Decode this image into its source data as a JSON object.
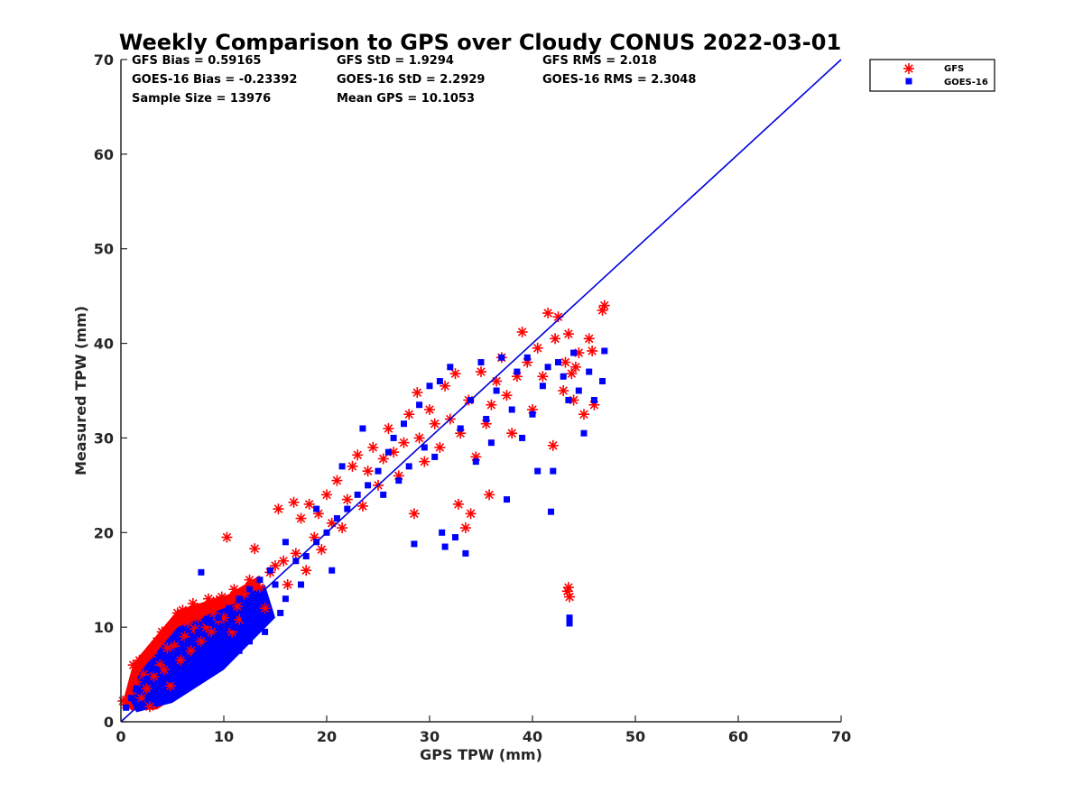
{
  "chart_data": {
    "type": "scatter",
    "title": "Weekly Comparison to GPS over Cloudy CONUS 2022-03-01",
    "xlabel": "GPS TPW (mm)",
    "ylabel": "Measured TPW (mm)",
    "xlim": [
      0,
      70
    ],
    "ylim": [
      0,
      70
    ],
    "xticks": [
      "0",
      "10",
      "20",
      "30",
      "40",
      "50",
      "60",
      "70"
    ],
    "yticks": [
      "0",
      "10",
      "20",
      "30",
      "40",
      "50",
      "60",
      "70"
    ],
    "grid": false,
    "legend_position": "outside-top-right",
    "reference_line": {
      "x": [
        0,
        70
      ],
      "y": [
        0,
        70
      ],
      "color": "#0000dd"
    },
    "stats": [
      {
        "id": "gfs-bias",
        "text": "GFS Bias = 0.59165"
      },
      {
        "id": "gfs-std",
        "text": "GFS StD = 1.9294"
      },
      {
        "id": "gfs-rms",
        "text": "GFS RMS = 2.018"
      },
      {
        "id": "goes-bias",
        "text": "GOES-16 Bias = -0.23392"
      },
      {
        "id": "goes-std",
        "text": "GOES-16 StD = 2.2929"
      },
      {
        "id": "goes-rms",
        "text": "GOES-16 RMS = 2.3048"
      },
      {
        "id": "sample-size",
        "text": "Sample Size = 13976"
      },
      {
        "id": "mean-gps",
        "text": "Mean GPS = 10.1053"
      }
    ],
    "series": [
      {
        "name": "GFS",
        "marker": "asterisk",
        "color": "#ff0000",
        "points": [
          [
            0.2,
            2.2
          ],
          [
            0.5,
            1.8
          ],
          [
            1.0,
            3.0
          ],
          [
            1.2,
            6.0
          ],
          [
            1.5,
            4.2
          ],
          [
            1.8,
            6.5
          ],
          [
            2.0,
            2.5
          ],
          [
            2.2,
            5.0
          ],
          [
            2.5,
            3.5
          ],
          [
            2.8,
            1.6
          ],
          [
            3.0,
            7.2
          ],
          [
            3.2,
            4.8
          ],
          [
            3.5,
            8.5
          ],
          [
            3.8,
            6.0
          ],
          [
            4.0,
            9.5
          ],
          [
            4.2,
            5.5
          ],
          [
            4.5,
            7.8
          ],
          [
            4.8,
            3.8
          ],
          [
            5.0,
            10.2
          ],
          [
            5.2,
            8.0
          ],
          [
            5.5,
            11.5
          ],
          [
            5.8,
            6.5
          ],
          [
            6.0,
            11.8
          ],
          [
            6.2,
            9.0
          ],
          [
            6.5,
            10.5
          ],
          [
            6.8,
            7.5
          ],
          [
            7.0,
            12.5
          ],
          [
            7.2,
            9.8
          ],
          [
            7.5,
            11.0
          ],
          [
            7.8,
            8.5
          ],
          [
            8.0,
            12.0
          ],
          [
            8.3,
            10.0
          ],
          [
            8.5,
            13.0
          ],
          [
            8.8,
            9.5
          ],
          [
            9.0,
            11.5
          ],
          [
            9.3,
            12.8
          ],
          [
            9.5,
            10.8
          ],
          [
            9.8,
            13.2
          ],
          [
            10.0,
            11.0
          ],
          [
            10.3,
            19.5
          ],
          [
            10.5,
            12.5
          ],
          [
            10.8,
            9.5
          ],
          [
            11.0,
            14.0
          ],
          [
            11.3,
            12.2
          ],
          [
            11.5,
            10.8
          ],
          [
            12.0,
            13.5
          ],
          [
            12.5,
            15.0
          ],
          [
            13.0,
            18.3
          ],
          [
            13.5,
            14.2
          ],
          [
            14.0,
            12.0
          ],
          [
            14.5,
            15.8
          ],
          [
            15.0,
            16.5
          ],
          [
            15.3,
            22.5
          ],
          [
            15.8,
            17.0
          ],
          [
            16.2,
            14.5
          ],
          [
            16.8,
            23.2
          ],
          [
            17.0,
            17.8
          ],
          [
            17.5,
            21.5
          ],
          [
            18.0,
            16.0
          ],
          [
            18.3,
            23.0
          ],
          [
            18.8,
            19.5
          ],
          [
            19.2,
            22.0
          ],
          [
            19.5,
            18.2
          ],
          [
            20.0,
            24.0
          ],
          [
            20.5,
            21.0
          ],
          [
            21.0,
            25.5
          ],
          [
            21.5,
            20.5
          ],
          [
            22.0,
            23.5
          ],
          [
            22.5,
            27.0
          ],
          [
            23.0,
            28.2
          ],
          [
            23.5,
            22.8
          ],
          [
            24.0,
            26.5
          ],
          [
            24.5,
            29.0
          ],
          [
            25.0,
            25.0
          ],
          [
            25.5,
            27.8
          ],
          [
            26.0,
            31.0
          ],
          [
            26.5,
            28.5
          ],
          [
            27.0,
            26.0
          ],
          [
            27.5,
            29.5
          ],
          [
            28.0,
            32.5
          ],
          [
            28.5,
            22.0
          ],
          [
            28.8,
            34.8
          ],
          [
            29.0,
            30.0
          ],
          [
            29.5,
            27.5
          ],
          [
            30.0,
            33.0
          ],
          [
            30.5,
            31.5
          ],
          [
            31.0,
            29.0
          ],
          [
            31.5,
            35.5
          ],
          [
            32.0,
            32.0
          ],
          [
            32.5,
            36.8
          ],
          [
            32.8,
            23.0
          ],
          [
            33.0,
            30.5
          ],
          [
            33.5,
            20.5
          ],
          [
            33.8,
            34.0
          ],
          [
            34.0,
            22.0
          ],
          [
            34.5,
            28.0
          ],
          [
            35.0,
            37.0
          ],
          [
            35.5,
            31.5
          ],
          [
            35.8,
            24.0
          ],
          [
            36.0,
            33.5
          ],
          [
            36.5,
            36.0
          ],
          [
            37.0,
            38.5
          ],
          [
            37.5,
            34.5
          ],
          [
            38.0,
            30.5
          ],
          [
            38.5,
            36.5
          ],
          [
            39.0,
            41.2
          ],
          [
            39.5,
            38.0
          ],
          [
            40.0,
            33.0
          ],
          [
            40.5,
            39.5
          ],
          [
            41.0,
            36.5
          ],
          [
            41.5,
            43.2
          ],
          [
            42.0,
            29.2
          ],
          [
            42.2,
            40.5
          ],
          [
            42.5,
            42.8
          ],
          [
            43.0,
            35.0
          ],
          [
            43.2,
            38.0
          ],
          [
            43.5,
            41.0
          ],
          [
            43.8,
            36.8
          ],
          [
            44.0,
            34.0
          ],
          [
            44.2,
            37.5
          ],
          [
            44.5,
            39.0
          ],
          [
            45.0,
            32.5
          ],
          [
            45.5,
            40.5
          ],
          [
            45.8,
            39.2
          ],
          [
            46.0,
            33.5
          ],
          [
            46.8,
            43.5
          ],
          [
            47.0,
            44.0
          ],
          [
            43.5,
            14.2
          ],
          [
            43.6,
            13.2
          ],
          [
            43.4,
            13.8
          ]
        ]
      },
      {
        "name": "GOES-16",
        "marker": "square",
        "color": "#0000ff",
        "points": [
          [
            0.5,
            1.5
          ],
          [
            1.0,
            2.5
          ],
          [
            1.5,
            3.5
          ],
          [
            2.0,
            1.8
          ],
          [
            2.5,
            4.5
          ],
          [
            3.0,
            2.8
          ],
          [
            3.5,
            5.5
          ],
          [
            4.0,
            3.5
          ],
          [
            4.5,
            6.5
          ],
          [
            5.0,
            4.5
          ],
          [
            5.5,
            7.5
          ],
          [
            6.0,
            5.0
          ],
          [
            6.5,
            8.5
          ],
          [
            7.0,
            6.0
          ],
          [
            7.5,
            9.5
          ],
          [
            8.0,
            7.0
          ],
          [
            8.5,
            10.5
          ],
          [
            9.0,
            8.0
          ],
          [
            9.5,
            11.0
          ],
          [
            10.0,
            9.0
          ],
          [
            10.5,
            12.0
          ],
          [
            11.0,
            10.0
          ],
          [
            11.5,
            13.0
          ],
          [
            12.0,
            11.0
          ],
          [
            12.5,
            14.0
          ],
          [
            13.0,
            12.0
          ],
          [
            13.5,
            15.0
          ],
          [
            14.0,
            13.0
          ],
          [
            14.5,
            16.0
          ],
          [
            15.0,
            14.5
          ],
          [
            7.8,
            15.8
          ],
          [
            9.5,
            6.0
          ],
          [
            11.5,
            7.5
          ],
          [
            12.5,
            8.5
          ],
          [
            14.0,
            9.5
          ],
          [
            15.5,
            11.5
          ],
          [
            16.0,
            13.0
          ],
          [
            17.0,
            17.0
          ],
          [
            18.0,
            17.5
          ],
          [
            19.0,
            19.0
          ],
          [
            20.0,
            20.0
          ],
          [
            21.0,
            21.5
          ],
          [
            21.5,
            27.0
          ],
          [
            22.0,
            22.5
          ],
          [
            23.0,
            24.0
          ],
          [
            23.5,
            31.0
          ],
          [
            24.0,
            25.0
          ],
          [
            25.0,
            26.5
          ],
          [
            25.5,
            24.0
          ],
          [
            26.0,
            28.5
          ],
          [
            26.5,
            30.0
          ],
          [
            27.0,
            25.5
          ],
          [
            27.5,
            31.5
          ],
          [
            28.0,
            27.0
          ],
          [
            28.5,
            18.8
          ],
          [
            29.0,
            33.5
          ],
          [
            29.5,
            29.0
          ],
          [
            30.0,
            35.5
          ],
          [
            30.5,
            28.0
          ],
          [
            31.0,
            36.0
          ],
          [
            31.2,
            20.0
          ],
          [
            31.5,
            18.5
          ],
          [
            32.0,
            37.5
          ],
          [
            32.5,
            19.5
          ],
          [
            33.0,
            31.0
          ],
          [
            33.5,
            17.8
          ],
          [
            34.0,
            34.0
          ],
          [
            34.5,
            27.5
          ],
          [
            35.0,
            38.0
          ],
          [
            35.5,
            32.0
          ],
          [
            36.0,
            29.5
          ],
          [
            36.5,
            35.0
          ],
          [
            37.0,
            38.5
          ],
          [
            37.5,
            23.5
          ],
          [
            38.0,
            33.0
          ],
          [
            38.5,
            37.0
          ],
          [
            39.0,
            30.0
          ],
          [
            39.5,
            38.5
          ],
          [
            40.0,
            32.5
          ],
          [
            40.5,
            26.5
          ],
          [
            41.0,
            35.5
          ],
          [
            41.5,
            37.5
          ],
          [
            41.8,
            22.2
          ],
          [
            42.0,
            26.5
          ],
          [
            42.5,
            38.0
          ],
          [
            43.0,
            36.5
          ],
          [
            43.5,
            34.0
          ],
          [
            44.0,
            39.0
          ],
          [
            44.5,
            35.0
          ],
          [
            45.0,
            30.5
          ],
          [
            45.5,
            37.0
          ],
          [
            46.0,
            34.0
          ],
          [
            46.8,
            36.0
          ],
          [
            47.0,
            39.2
          ],
          [
            43.6,
            11.0
          ],
          [
            43.6,
            10.4
          ],
          [
            16.0,
            19.0
          ],
          [
            20.5,
            16.0
          ],
          [
            19.0,
            22.5
          ],
          [
            17.5,
            14.5
          ]
        ]
      }
    ]
  }
}
